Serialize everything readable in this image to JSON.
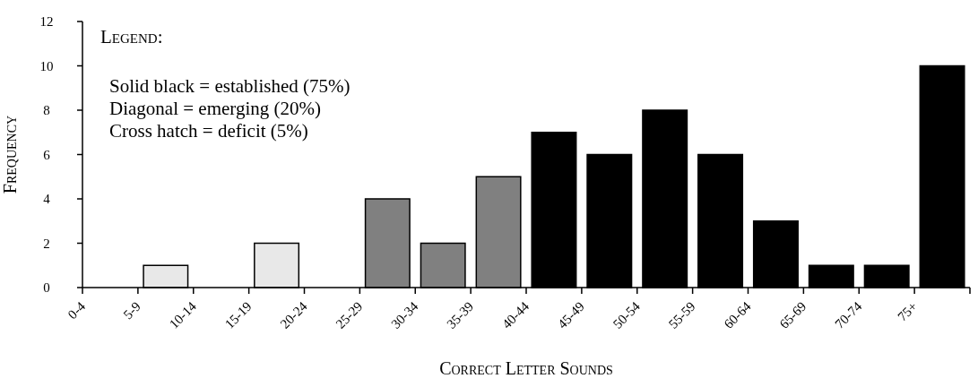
{
  "chart_data": {
    "type": "bar",
    "xlabel": "Correct Letter Sounds",
    "ylabel": "Frequency",
    "categories": [
      "0-4",
      "5-9",
      "10-14",
      "15-19",
      "20-24",
      "25-29",
      "30-34",
      "35-39",
      "40-44",
      "45-49",
      "50-54",
      "55-59",
      "60-64",
      "65-69",
      "70-74",
      "75+"
    ],
    "values": [
      0,
      1,
      0,
      2,
      0,
      4,
      2,
      5,
      7,
      6,
      8,
      6,
      3,
      1,
      1,
      10
    ],
    "colors": [
      "#e8e8e8",
      "#e8e8e8",
      "#e8e8e8",
      "#e8e8e8",
      "#e8e8e8",
      "#808080",
      "#808080",
      "#808080",
      "#000000",
      "#000000",
      "#000000",
      "#000000",
      "#000000",
      "#000000",
      "#000000",
      "#000000"
    ],
    "ylim": [
      0,
      12
    ],
    "yticks": [
      0,
      2,
      4,
      6,
      8,
      10,
      12
    ],
    "grid": false,
    "annotations": [
      "Legend:",
      "Solid black = established (75%)",
      "Diagonal = emerging (20%)",
      "Cross hatch = deficit (5%)"
    ]
  }
}
